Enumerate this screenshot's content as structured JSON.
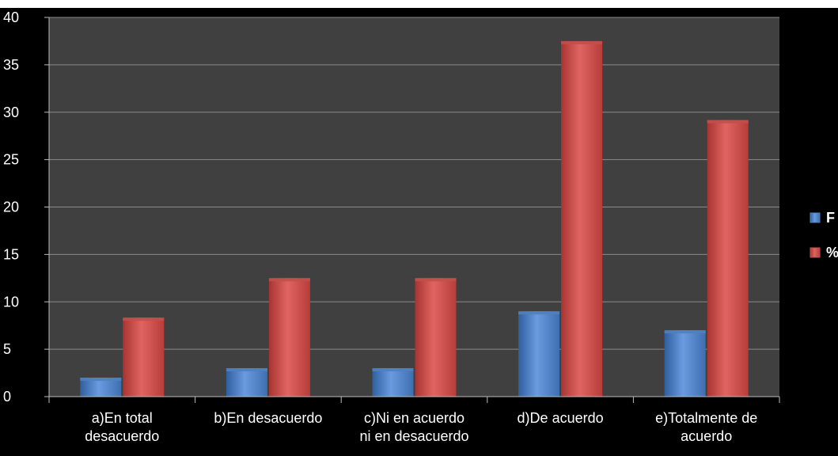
{
  "chart_data": {
    "type": "bar",
    "categories": [
      [
        "a)En total",
        "desacuerdo"
      ],
      [
        "b)En desacuerdo"
      ],
      [
        "c)Ni en acuerdo",
        "ni en desacuerdo"
      ],
      [
        "d)De acuerdo"
      ],
      [
        "e)Totalmente de",
        "acuerdo"
      ]
    ],
    "series": [
      {
        "name": "F",
        "values": [
          2,
          3,
          3,
          9,
          7
        ],
        "color": "#4f81bd"
      },
      {
        "name": "%",
        "values": [
          8.33,
          12.5,
          12.5,
          37.5,
          29.17
        ],
        "color": "#c0504d"
      }
    ],
    "ylim": [
      0,
      40
    ],
    "yticks": [
      "0",
      "5",
      "10",
      "15",
      "20",
      "25",
      "30",
      "35",
      "40"
    ],
    "grid": true,
    "legend": "right",
    "plot_background": "#404040",
    "background": "#000000"
  }
}
